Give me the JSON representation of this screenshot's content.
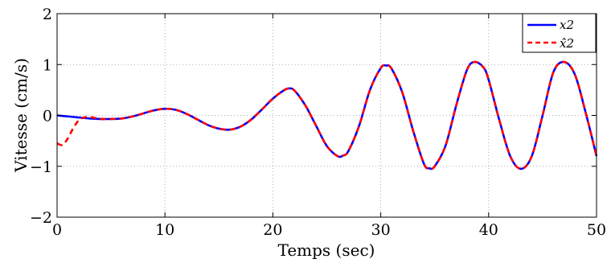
{
  "chart_data": {
    "type": "line",
    "title": "",
    "xlabel": "Temps (sec)",
    "ylabel": "Vitesse (cm/s)",
    "xlim": [
      0,
      50
    ],
    "ylim": [
      -2,
      2
    ],
    "xticks": [
      0,
      10,
      20,
      30,
      40,
      50
    ],
    "yticks": [
      -2,
      -1,
      0,
      1,
      2
    ],
    "xtick_labels": [
      "0",
      "10",
      "20",
      "30",
      "40",
      "50"
    ],
    "ytick_labels": [
      "−2",
      "−1",
      "0",
      "1",
      "2"
    ],
    "grid": true,
    "legend_position": "top-right",
    "series": [
      {
        "name": "x2",
        "color": "#0000ff",
        "style": "solid",
        "x": [
          0,
          1,
          2,
          3,
          4,
          5,
          6,
          7,
          8,
          9,
          10,
          11,
          12,
          13,
          14,
          15,
          16,
          17,
          18,
          19,
          20,
          21,
          21.5,
          22,
          23,
          24,
          25,
          26,
          26.5,
          27,
          28,
          29,
          30,
          30.5,
          31,
          32,
          33,
          34,
          34.5,
          35,
          36,
          37,
          38,
          38.7,
          39.5,
          40,
          41,
          42,
          43,
          44,
          45,
          46,
          47,
          48,
          49,
          50
        ],
        "y": [
          0,
          -0.02,
          -0.04,
          -0.06,
          -0.07,
          -0.07,
          -0.06,
          -0.02,
          0.04,
          0.1,
          0.13,
          0.11,
          0.03,
          -0.08,
          -0.19,
          -0.26,
          -0.28,
          -0.22,
          -0.08,
          0.12,
          0.33,
          0.49,
          0.53,
          0.49,
          0.2,
          -0.2,
          -0.6,
          -0.8,
          -0.79,
          -0.7,
          -0.2,
          0.5,
          0.93,
          0.98,
          0.92,
          0.45,
          -0.3,
          -0.95,
          -1.04,
          -1.0,
          -0.6,
          0.2,
          0.9,
          1.05,
          0.95,
          0.7,
          -0.1,
          -0.8,
          -1.05,
          -0.8,
          0.0,
          0.85,
          1.05,
          0.8,
          0.05,
          -0.8
        ]
      },
      {
        "name": "x̂2",
        "color": "#ff0000",
        "style": "dashed",
        "x": [
          0,
          0.5,
          1,
          1.5,
          2,
          2.5,
          3,
          3.5,
          4,
          5,
          6,
          7,
          8,
          9,
          10,
          11,
          12,
          13,
          14,
          15,
          16,
          17,
          18,
          19,
          20,
          21,
          21.5,
          22,
          23,
          24,
          25,
          26,
          26.5,
          27,
          28,
          29,
          30,
          30.5,
          31,
          32,
          33,
          34,
          34.5,
          35,
          36,
          37,
          38,
          38.7,
          39.5,
          40,
          41,
          42,
          43,
          44,
          45,
          46,
          47,
          48,
          49,
          50
        ],
        "y": [
          -0.55,
          -0.58,
          -0.45,
          -0.25,
          -0.1,
          -0.04,
          -0.03,
          -0.05,
          -0.07,
          -0.07,
          -0.06,
          -0.02,
          0.04,
          0.1,
          0.13,
          0.11,
          0.03,
          -0.08,
          -0.19,
          -0.26,
          -0.28,
          -0.22,
          -0.08,
          0.12,
          0.33,
          0.49,
          0.53,
          0.49,
          0.2,
          -0.2,
          -0.6,
          -0.8,
          -0.79,
          -0.7,
          -0.2,
          0.5,
          0.93,
          0.98,
          0.92,
          0.45,
          -0.3,
          -0.95,
          -1.04,
          -1.0,
          -0.6,
          0.2,
          0.9,
          1.05,
          0.95,
          0.7,
          -0.1,
          -0.8,
          -1.05,
          -0.8,
          0.0,
          0.85,
          1.05,
          0.8,
          0.05,
          -0.8
        ]
      }
    ]
  }
}
